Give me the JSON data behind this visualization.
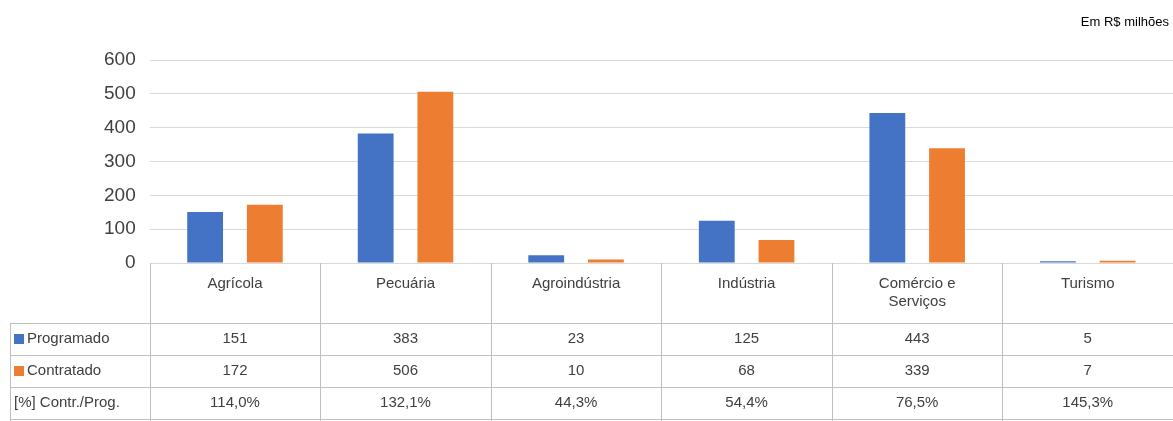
{
  "chart_data": {
    "type": "bar",
    "subtitle": "Em R$ milhões",
    "categories": [
      "Agrícola",
      "Pecuária",
      "Agroindústria",
      "Indústria",
      "Comércio e Serviços",
      "Turismo"
    ],
    "series": [
      {
        "name": "Programado",
        "color": "#4472c4",
        "values": [
          151,
          383,
          23,
          125,
          443,
          5
        ]
      },
      {
        "name": "Contratado",
        "color": "#ed7d31",
        "values": [
          172,
          506,
          10,
          68,
          339,
          7
        ]
      }
    ],
    "ylim": [
      0,
      600
    ],
    "yticks": [
      0,
      100,
      200,
      300,
      400,
      500,
      600
    ],
    "grid": "y",
    "legend": "bottom",
    "data_labels": true,
    "annotations": [
      "[%] Contr./Prog.",
      "114,0%",
      "132,1%",
      "44,3%",
      "54,4%",
      "76,5%",
      "145,3%"
    ]
  }
}
